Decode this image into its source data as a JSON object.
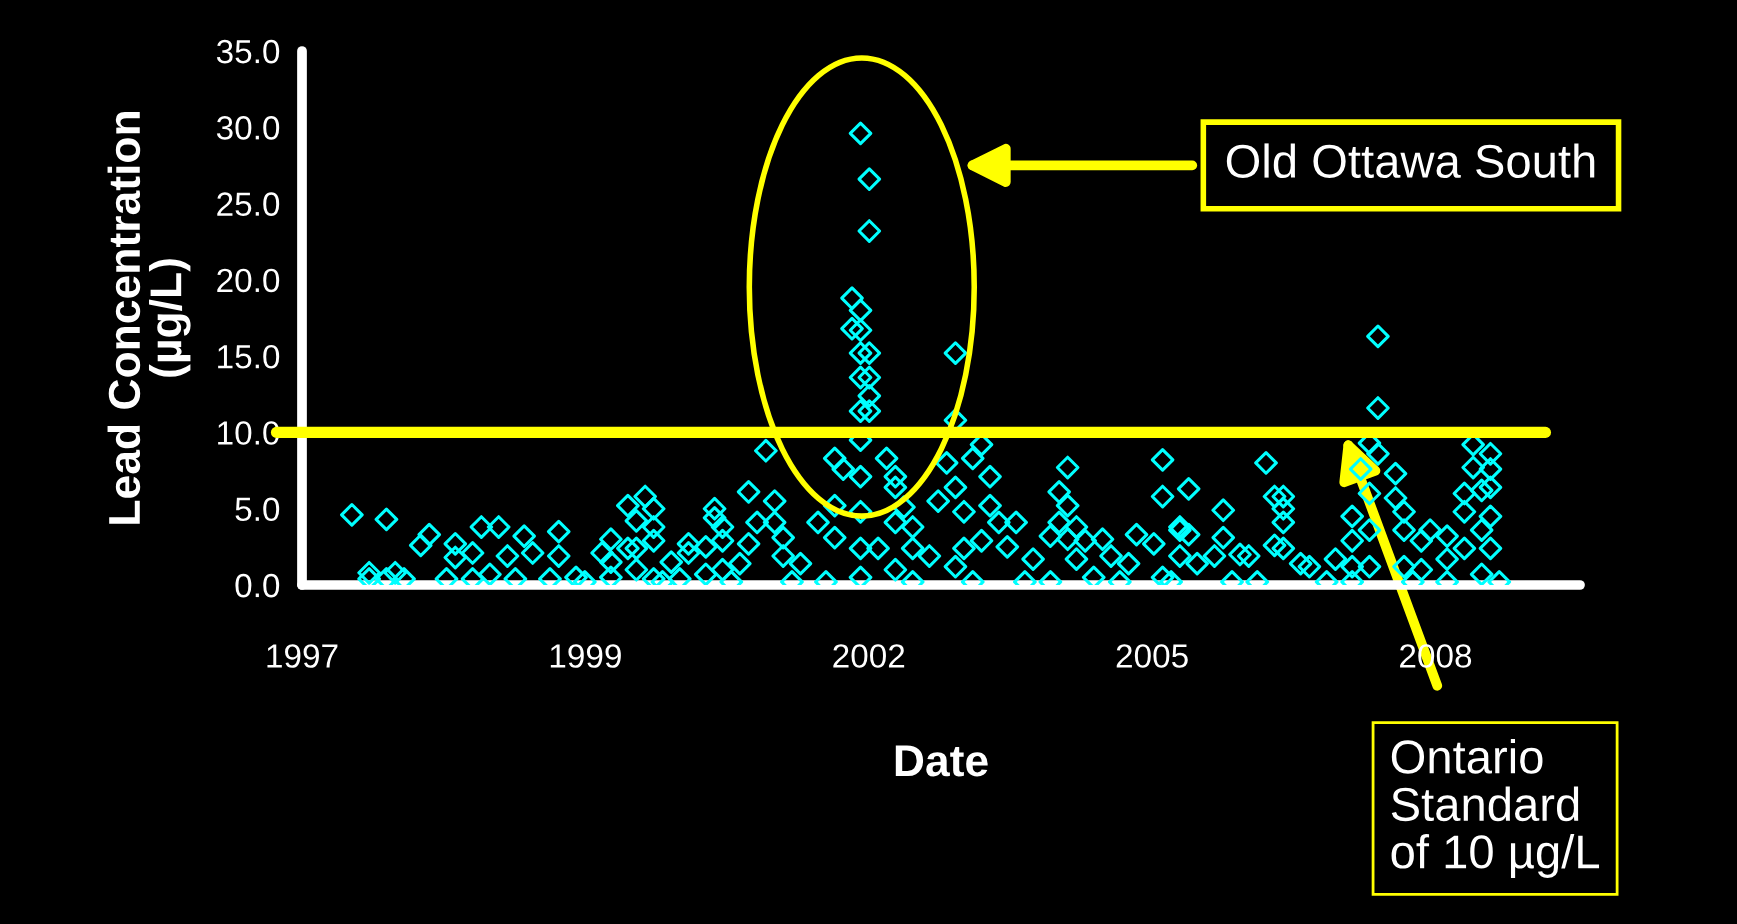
{
  "chart_data": {
    "type": "scatter",
    "xlabel": "Date",
    "ylabel": "Lead Concentration\n(µg/L)",
    "marker": "diamond",
    "grid": false,
    "xlim": [
      "1997-02-06",
      "2009-06-13"
    ],
    "xticks": [
      {
        "value": "1997-02-06",
        "label": "1997"
      },
      {
        "value": "1999-11-03",
        "label": "1999"
      },
      {
        "value": "2002-07-30",
        "label": "2002"
      },
      {
        "value": "2005-04-25",
        "label": "2005"
      },
      {
        "value": "2008-01-20",
        "label": "2008"
      }
    ],
    "ylim": [
      0,
      35
    ],
    "yticks": [
      {
        "value": 0,
        "label": "0.0"
      },
      {
        "value": 5,
        "label": "5.0"
      },
      {
        "value": 10,
        "label": "10.0"
      },
      {
        "value": 15,
        "label": "15.0"
      },
      {
        "value": 20,
        "label": "20.0"
      },
      {
        "value": 25,
        "label": "25.0"
      },
      {
        "value": 30,
        "label": "30.0"
      },
      {
        "value": 35,
        "label": "35.0"
      }
    ],
    "ref_lines": [
      {
        "axis": "y",
        "value": 10,
        "label": "Ontario\nStandard\nof 10 µg/L",
        "color": "#ffff00"
      }
    ],
    "annotations": [
      "Old Ottawa South"
    ],
    "series": [
      {
        "color": "#00ffff",
        "x": [
          "1997-08",
          "1997-12",
          "1997-10",
          "1997-10",
          "1997-12",
          "1998-02",
          "1998-01",
          "1998-04",
          "1998-05",
          "1998-07",
          "1998-08",
          "1998-08",
          "1998-10",
          "1998-10",
          "1998-11",
          "1999-01",
          "1999-02",
          "1999-04",
          "1999-05",
          "1998-12",
          "1999-03",
          "1999-07",
          "1999-08",
          "1999-08",
          "1999-10",
          "2000-01",
          "2000-02",
          "2000-02",
          "2000-02",
          "2000-04",
          "2000-04",
          "2000-06",
          "2000-07",
          "2000-05",
          "2000-07",
          "2000-07",
          "2000-05",
          "2000-05",
          "2000-07",
          "2000-09",
          "2000-10",
          "2000-11",
          "2000-11",
          "2001-01",
          "2001-02",
          "2001-02",
          "2001-03",
          "2001-03",
          "2001-03",
          "2001-01",
          "2001-08",
          "2001-06",
          "2001-09",
          "2001-07",
          "2001-09",
          "2001-10",
          "2001-10",
          "2001-06",
          "2001-05",
          "2002-04",
          "2002-05",
          "2002-02",
          "2002-04",
          "2002-04",
          "2001-12",
          "2002-07",
          "2002-08",
          "2002-08",
          "2002-06",
          "2002-07",
          "2002-06",
          "2002-07",
          "2002-08",
          "2002-07",
          "2002-08",
          "2002-07",
          "2002-08",
          "2002-07",
          "2002-08",
          "2002-07",
          "2002-07",
          "2002-07",
          "2002-07",
          "2002-07",
          "2002-10",
          "2002-11",
          "2002-11",
          "2002-12",
          "2003-01",
          "2002-11",
          "2002-09",
          "2003-01",
          "2003-03",
          "2002-11",
          "2003-06",
          "2003-06",
          "2003-05",
          "2003-09",
          "2003-04",
          "2003-06",
          "2003-08",
          "2003-10",
          "2003-10",
          "2003-11",
          "2003-07",
          "2003-07",
          "2003-09",
          "2003-06",
          "2003-12",
          "2004-01",
          "2004-03",
          "2004-05",
          "2004-06",
          "2004-07",
          "2004-07",
          "2004-06",
          "2004-08",
          "2004-07",
          "2004-09",
          "2004-11",
          "2004-12",
          "2004-08",
          "2004-10",
          "2005-03",
          "2005-05",
          "2005-06",
          "2005-06",
          "2005-08",
          "2005-02",
          "2005-06",
          "2005-08",
          "2005-09",
          "2006-01",
          "2005-08",
          "2005-09",
          "2006-01",
          "2005-12",
          "2006-03",
          "2006-04",
          "2005-10",
          "2006-06",
          "2006-07",
          "2006-08",
          "2006-08",
          "2006-08",
          "2006-08",
          "2006-07",
          "2006-10",
          "2006-11",
          "2007-02",
          "2007-04",
          "2007-04",
          "2007-04",
          "2007-07",
          "2007-07",
          "2007-06",
          "2007-05",
          "2007-07",
          "2007-09",
          "2007-09",
          "2007-10",
          "2007-10",
          "2007-10",
          "2007-06",
          "2007-06",
          "2007-06",
          "2007-12",
          "2008-01",
          "2008-03",
          "2008-03",
          "2007-12",
          "2008-06",
          "2008-08",
          "2008-06",
          "2008-08",
          "2008-05",
          "2008-08",
          "2008-07",
          "2008-08",
          "2008-05",
          "2008-07",
          "2008-05",
          "2008-08",
          "2008-07",
          "1999-11",
          "2000-08",
          "2001-04",
          "2001-11",
          "2002-03",
          "2003-01",
          "2003-08",
          "2004-02",
          "2004-05",
          "2005-01",
          "2005-07",
          "2006-02",
          "2006-05",
          "2007-01",
          "2007-04",
          "2007-11",
          "2008-03",
          "2008-09"
        ],
        "values": [
          4.6,
          4.3,
          0.8,
          0.4,
          0.4,
          0.4,
          0.8,
          2.6,
          3.3,
          0.4,
          1.8,
          2.7,
          2.1,
          0.4,
          3.8,
          3.8,
          1.9,
          3.2,
          2.1,
          0.7,
          0.4,
          0.4,
          3.5,
          1.9,
          0.5,
          2.1,
          0.5,
          3.0,
          1.5,
          2.4,
          5.2,
          5.8,
          5.0,
          4.2,
          3.8,
          2.9,
          2.4,
          1.0,
          0.4,
          1.5,
          0.4,
          2.7,
          2.1,
          2.5,
          5.0,
          4.4,
          3.8,
          2.9,
          1.0,
          0.7,
          8.8,
          6.1,
          5.5,
          4.1,
          4.1,
          3.1,
          1.9,
          2.7,
          1.4,
          8.3,
          7.6,
          4.1,
          5.2,
          3.1,
          1.4,
          29.6,
          26.6,
          23.2,
          18.8,
          18.0,
          16.8,
          16.7,
          15.2,
          15.2,
          13.6,
          13.6,
          12.4,
          11.4,
          11.4,
          9.5,
          7.1,
          4.8,
          2.4,
          0.5,
          8.3,
          7.1,
          6.4,
          5.1,
          3.8,
          4.1,
          2.4,
          2.4,
          1.9,
          1.0,
          15.2,
          10.8,
          8.0,
          9.2,
          5.5,
          6.4,
          8.3,
          7.1,
          5.2,
          4.1,
          4.8,
          2.4,
          2.9,
          1.2,
          2.5,
          4.1,
          1.7,
          3.2,
          6.1,
          7.7,
          5.2,
          4.1,
          3.8,
          3.0,
          2.9,
          3.0,
          1.9,
          1.7,
          0.5,
          3.3,
          2.7,
          8.2,
          5.8,
          3.8,
          1.4,
          0.5,
          1.9,
          6.3,
          4.9,
          3.6,
          3.3,
          3.1,
          1.9,
          2.0,
          1.9,
          1.4,
          8.0,
          5.8,
          5.8,
          5.0,
          4.1,
          2.4,
          2.6,
          1.4,
          1.2,
          1.7,
          4.5,
          2.9,
          1.2,
          16.3,
          11.6,
          9.3,
          7.6,
          8.6,
          7.3,
          5.7,
          4.8,
          3.6,
          1.2,
          6.0,
          3.6,
          1.2,
          2.9,
          3.6,
          3.2,
          1.7,
          1.0,
          9.2,
          8.6,
          7.7,
          7.6,
          6.0,
          6.4,
          6.2,
          4.5,
          4.8,
          3.6,
          2.4,
          2.4,
          0.7,
          0.2,
          0.2,
          0.2,
          0.2,
          0.2,
          0.2,
          0.2,
          0.2,
          0.2,
          0.2,
          0.2,
          0.2,
          0.2,
          0.2,
          0.2,
          0.2,
          0.2,
          0.2
        ]
      }
    ]
  }
}
